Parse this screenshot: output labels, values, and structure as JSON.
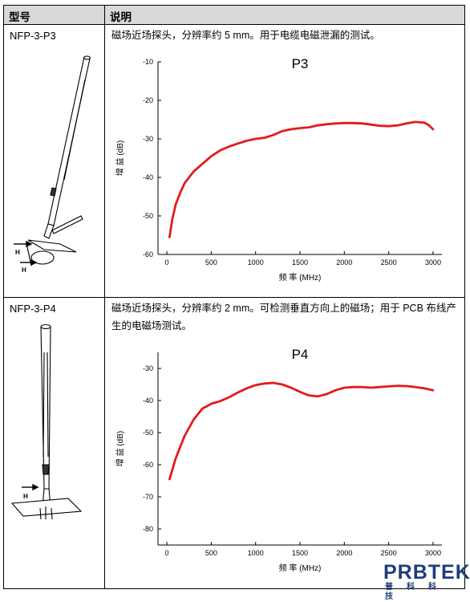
{
  "table": {
    "col_model": "型号",
    "col_desc": "说明",
    "rows": [
      {
        "model": "NFP-3-P3",
        "desc_parts": [
          "磁场近场探头，分辨率约 ",
          "5 mm",
          "。用于电缆电磁泄漏的测试。"
        ],
        "probe_labels": [
          "H",
          "H"
        ]
      },
      {
        "model": "NFP-3-P4",
        "desc_parts": [
          "磁场近场探头，分辨率约 ",
          "2 mm",
          "。可检测垂直方向上的磁场；用于 ",
          "PCB",
          " 布线产生的电磁场测试。"
        ],
        "probe_labels": [
          "H"
        ]
      }
    ]
  },
  "chart_data": [
    {
      "type": "line",
      "title": "P3",
      "xlabel": "频 率 (MHz)",
      "ylabel": "增 益 (dB)",
      "xlim": [
        -100,
        3100
      ],
      "ylim": [
        -60,
        -10
      ],
      "x_ticks": [
        0,
        500,
        1000,
        1500,
        2000,
        2500,
        3000
      ],
      "y_ticks": [
        -10,
        -20,
        -30,
        -40,
        -50,
        -60
      ],
      "color": "#e31b1b",
      "series": [
        {
          "x": [
            30,
            60,
            100,
            150,
            200,
            300,
            400,
            500,
            600,
            700,
            800,
            900,
            1000,
            1100,
            1200,
            1300,
            1400,
            1500,
            1600,
            1700,
            1800,
            1900,
            2000,
            2100,
            2200,
            2300,
            2400,
            2500,
            2600,
            2700,
            2800,
            2900,
            2950,
            3000
          ],
          "y": [
            -55.5,
            -51,
            -47,
            -44,
            -41.5,
            -38.5,
            -36.5,
            -34.5,
            -33,
            -32,
            -31.2,
            -30.5,
            -30,
            -29.7,
            -29,
            -28,
            -27.5,
            -27.2,
            -27,
            -26.5,
            -26.2,
            -26,
            -25.9,
            -25.9,
            -26,
            -26.3,
            -26.6,
            -26.7,
            -26.5,
            -26,
            -25.6,
            -25.8,
            -26.4,
            -27.5
          ]
        }
      ]
    },
    {
      "type": "line",
      "title": "P4",
      "xlabel": "频 率 (MHz)",
      "ylabel": "增 益 (dB)",
      "xlim": [
        -100,
        3100
      ],
      "ylim": [
        -85,
        -25
      ],
      "x_ticks": [
        0,
        500,
        1000,
        1500,
        2000,
        2500,
        3000
      ],
      "y_ticks": [
        -30,
        -40,
        -50,
        -60,
        -70,
        -80
      ],
      "color": "#e31b1b",
      "series": [
        {
          "x": [
            30,
            100,
            200,
            300,
            400,
            450,
            500,
            600,
            700,
            800,
            900,
            1000,
            1100,
            1200,
            1300,
            1400,
            1500,
            1600,
            1700,
            1800,
            1900,
            2000,
            2100,
            2200,
            2300,
            2400,
            2500,
            2600,
            2700,
            2800,
            2900,
            3000
          ],
          "y": [
            -64.5,
            -58,
            -51,
            -46,
            -42.5,
            -41.8,
            -41,
            -40.2,
            -39,
            -37.5,
            -36.2,
            -35.2,
            -34.7,
            -34.5,
            -35,
            -36,
            -37.3,
            -38.4,
            -38.7,
            -38,
            -36.8,
            -36,
            -35.8,
            -35.8,
            -36,
            -35.8,
            -35.6,
            -35.4,
            -35.5,
            -35.8,
            -36.2,
            -36.8
          ]
        }
      ]
    }
  ],
  "logo": {
    "main": "PRBTEK",
    "sub": "普科科技"
  }
}
